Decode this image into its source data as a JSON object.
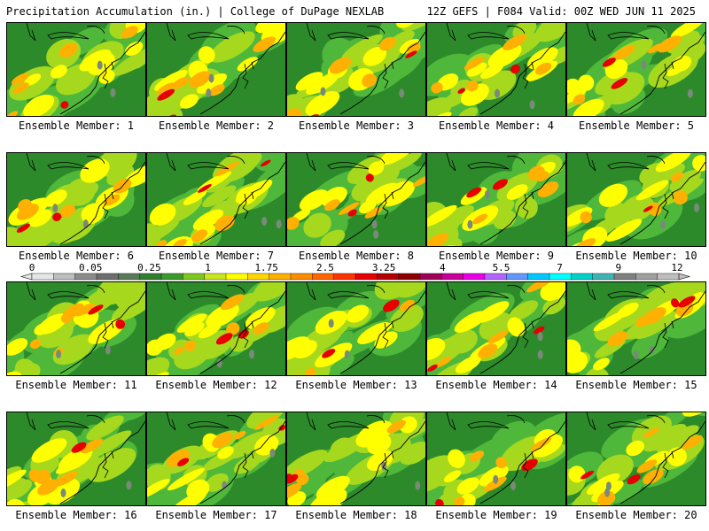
{
  "header": {
    "left_title": "Precipitation Accumulation (in.) | College of DuPage NEXLAB",
    "right_title": "12Z GEFS | F084 Valid: 00Z WED JUN 11 2025"
  },
  "panels": [
    {
      "label": "Ensemble Member: 1"
    },
    {
      "label": "Ensemble Member: 2"
    },
    {
      "label": "Ensemble Member: 3"
    },
    {
      "label": "Ensemble Member: 4"
    },
    {
      "label": "Ensemble Member: 5"
    },
    {
      "label": "Ensemble Member: 6"
    },
    {
      "label": "Ensemble Member: 7"
    },
    {
      "label": "Ensemble Member: 8"
    },
    {
      "label": "Ensemble Member: 9"
    },
    {
      "label": "Ensemble Member: 10"
    },
    {
      "label": "Ensemble Member: 11"
    },
    {
      "label": "Ensemble Member: 12"
    },
    {
      "label": "Ensemble Member: 13"
    },
    {
      "label": "Ensemble Member: 14"
    },
    {
      "label": "Ensemble Member: 15"
    },
    {
      "label": "Ensemble Member: 16"
    },
    {
      "label": "Ensemble Member: 17"
    },
    {
      "label": "Ensemble Member: 18"
    },
    {
      "label": "Ensemble Member: 19"
    },
    {
      "label": "Ensemble Member: 20"
    }
  ],
  "colorbar": {
    "tick_labels": [
      "0",
      "0.05",
      "0.25",
      "1",
      "1.75",
      "2.5",
      "3.25",
      "4",
      "5.5",
      "7",
      "9",
      "12"
    ],
    "colors": [
      "#e6e6e6",
      "#bdbdbd",
      "#8c8c8c",
      "#6e6e6e",
      "#5a7a5a",
      "#2f7d2f",
      "#3a9a2a",
      "#7fc81e",
      "#c8e61e",
      "#ffff00",
      "#ffd700",
      "#ffb000",
      "#ff8c00",
      "#ff6600",
      "#ff3300",
      "#e60000",
      "#b40000",
      "#8b0000",
      "#a0005a",
      "#c8009c",
      "#e600e6",
      "#b464ff",
      "#6496ff",
      "#00c8ff",
      "#00ffff",
      "#00d2c8",
      "#40b4b4",
      "#808080",
      "#a0a0a0",
      "#bebebe"
    ]
  },
  "map_colors": {
    "green_dark": "#2d8a2a",
    "green": "#4fb83a",
    "green_light": "#a6d91e",
    "yellow": "#ffff00",
    "orange": "#ffb000",
    "red": "#e60000",
    "gray": "#7a8a7a"
  }
}
